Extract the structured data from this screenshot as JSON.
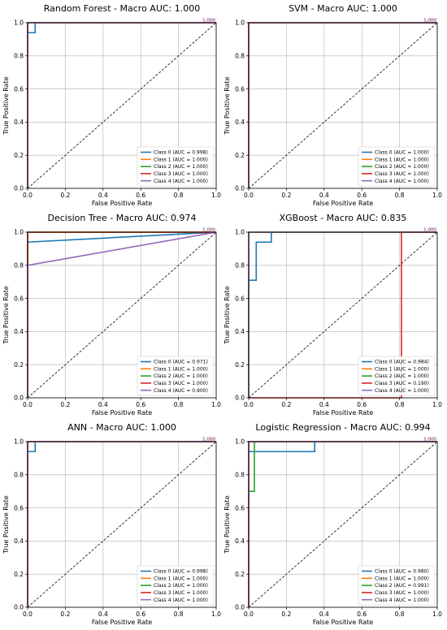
{
  "chart_data": [
    {
      "type": "line",
      "title": "Random Forest - Macro AUC: 1.000",
      "xlabel": "False Positive Rate",
      "ylabel": "True Positive Rate",
      "xlim": [
        0,
        1
      ],
      "ylim": [
        0,
        1
      ],
      "xticks": [
        "0.0",
        "0.2",
        "0.4",
        "0.6",
        "0.8",
        "1.0"
      ],
      "yticks": [
        "0.0",
        "0.2",
        "0.4",
        "0.6",
        "0.8",
        "1.0"
      ],
      "grid": true,
      "legend_position": "lower-right",
      "chance_line": true,
      "series": [
        {
          "name": "Class 0 (AUC = 0.998)",
          "color": "#1f77b4",
          "x": [
            0,
            0,
            0.04,
            0.04,
            1
          ],
          "y": [
            0,
            0.94,
            0.94,
            1,
            1
          ]
        },
        {
          "name": "Class 1 (AUC = 1.000)",
          "color": "#ff7f0e",
          "x": [
            0,
            0,
            1
          ],
          "y": [
            0,
            1,
            1
          ]
        },
        {
          "name": "Class 2 (AUC = 1.000)",
          "color": "#2ca02c",
          "x": [
            0,
            0,
            1
          ],
          "y": [
            0,
            1,
            1
          ]
        },
        {
          "name": "Class 3 (AUC = 1.000)",
          "color": "#d62728",
          "x": [
            0,
            0,
            1
          ],
          "y": [
            0,
            1,
            1
          ]
        },
        {
          "name": "Class 4 (AUC = 1.000)",
          "color": "#9467bd",
          "x": [
            0,
            0,
            1
          ],
          "y": [
            0,
            1,
            1
          ]
        }
      ],
      "end_label": "1.000"
    },
    {
      "type": "line",
      "title": "SVM - Macro AUC: 1.000",
      "xlabel": "False Positive Rate",
      "ylabel": "True Positive Rate",
      "xlim": [
        0,
        1
      ],
      "ylim": [
        0,
        1
      ],
      "xticks": [
        "0.0",
        "0.2",
        "0.4",
        "0.6",
        "0.8",
        "1.0"
      ],
      "yticks": [
        "0.0",
        "0.2",
        "0.4",
        "0.6",
        "0.8",
        "1.0"
      ],
      "grid": true,
      "legend_position": "lower-right",
      "chance_line": true,
      "series": [
        {
          "name": "Class 0 (AUC = 1.000)",
          "color": "#1f77b4",
          "x": [
            0,
            0,
            1
          ],
          "y": [
            0,
            1,
            1
          ]
        },
        {
          "name": "Class 1 (AUC = 1.000)",
          "color": "#ff7f0e",
          "x": [
            0,
            0,
            1
          ],
          "y": [
            0,
            1,
            1
          ]
        },
        {
          "name": "Class 2 (AUC = 1.000)",
          "color": "#2ca02c",
          "x": [
            0,
            0,
            1
          ],
          "y": [
            0,
            1,
            1
          ]
        },
        {
          "name": "Class 3 (AUC = 1.000)",
          "color": "#d62728",
          "x": [
            0,
            0,
            1
          ],
          "y": [
            0,
            1,
            1
          ]
        },
        {
          "name": "Class 4 (AUC = 1.000)",
          "color": "#9467bd",
          "x": [
            0,
            0,
            1
          ],
          "y": [
            0,
            1,
            1
          ]
        }
      ],
      "end_label": "1.000"
    },
    {
      "type": "line",
      "title": "Decision Tree - Macro AUC: 0.974",
      "xlabel": "False Positive Rate",
      "ylabel": "True Positive Rate",
      "xlim": [
        0,
        1
      ],
      "ylim": [
        0,
        1
      ],
      "xticks": [
        "0.0",
        "0.2",
        "0.4",
        "0.6",
        "0.8",
        "1.0"
      ],
      "yticks": [
        "0.0",
        "0.2",
        "0.4",
        "0.6",
        "0.8",
        "1.0"
      ],
      "grid": true,
      "legend_position": "lower-right",
      "chance_line": true,
      "series": [
        {
          "name": "Class 0 (AUC = 0.971)",
          "color": "#1f77b4",
          "x": [
            0,
            0,
            1
          ],
          "y": [
            0,
            0.94,
            1
          ]
        },
        {
          "name": "Class 1 (AUC = 1.000)",
          "color": "#ff7f0e",
          "x": [
            0,
            0,
            1
          ],
          "y": [
            0,
            1,
            1
          ]
        },
        {
          "name": "Class 2 (AUC = 1.000)",
          "color": "#2ca02c",
          "x": [
            0,
            0,
            1
          ],
          "y": [
            0,
            1,
            1
          ]
        },
        {
          "name": "Class 3 (AUC = 1.000)",
          "color": "#d62728",
          "x": [
            0,
            0,
            1
          ],
          "y": [
            0,
            1,
            1
          ]
        },
        {
          "name": "Class 4 (AUC = 0.900)",
          "color": "#9467bd",
          "x": [
            0,
            0,
            1
          ],
          "y": [
            0,
            0.8,
            1
          ]
        }
      ],
      "end_label": "1.000"
    },
    {
      "type": "line",
      "title": "XGBoost - Macro AUC: 0.835",
      "xlabel": "False Positive Rate",
      "ylabel": "True Positive Rate",
      "xlim": [
        0,
        1
      ],
      "ylim": [
        0,
        1
      ],
      "xticks": [
        "0.0",
        "0.2",
        "0.4",
        "0.6",
        "0.8",
        "1.0"
      ],
      "yticks": [
        "0.0",
        "0.2",
        "0.4",
        "0.6",
        "0.8",
        "1.0"
      ],
      "grid": true,
      "legend_position": "lower-right",
      "chance_line": true,
      "series": [
        {
          "name": "Class 0 (AUC = 0.984)",
          "color": "#1f77b4",
          "x": [
            0,
            0,
            0.04,
            0.04,
            0.12,
            0.12,
            1
          ],
          "y": [
            0,
            0.71,
            0.71,
            0.94,
            0.94,
            1,
            1
          ]
        },
        {
          "name": "Class 1 (AUC = 1.000)",
          "color": "#ff7f0e",
          "x": [
            0,
            0,
            1
          ],
          "y": [
            0,
            1,
            1
          ]
        },
        {
          "name": "Class 2 (AUC = 1.000)",
          "color": "#2ca02c",
          "x": [
            0,
            0,
            1
          ],
          "y": [
            0,
            1,
            1
          ]
        },
        {
          "name": "Class 3 (AUC = 0.190)",
          "color": "#d62728",
          "x": [
            0,
            0.81,
            0.81,
            1
          ],
          "y": [
            0,
            0,
            1,
            1
          ]
        },
        {
          "name": "Class 4 (AUC = 1.000)",
          "color": "#9467bd",
          "x": [
            0,
            0,
            1
          ],
          "y": [
            0,
            1,
            1
          ]
        }
      ],
      "end_label": "1.000"
    },
    {
      "type": "line",
      "title": "ANN - Macro AUC: 1.000",
      "xlabel": "False Positive Rate",
      "ylabel": "True Positive Rate",
      "xlim": [
        0,
        1
      ],
      "ylim": [
        0,
        1
      ],
      "xticks": [
        "0.0",
        "0.2",
        "0.4",
        "0.6",
        "0.8",
        "1.0"
      ],
      "yticks": [
        "0.0",
        "0.2",
        "0.4",
        "0.6",
        "0.8",
        "1.0"
      ],
      "grid": true,
      "legend_position": "lower-right",
      "chance_line": true,
      "series": [
        {
          "name": "Class 0 (AUC = 0.998)",
          "color": "#1f77b4",
          "x": [
            0,
            0,
            0.04,
            0.04,
            1
          ],
          "y": [
            0,
            0.94,
            0.94,
            1,
            1
          ]
        },
        {
          "name": "Class 1 (AUC = 1.000)",
          "color": "#ff7f0e",
          "x": [
            0,
            0,
            1
          ],
          "y": [
            0,
            1,
            1
          ]
        },
        {
          "name": "Class 2 (AUC = 1.000)",
          "color": "#2ca02c",
          "x": [
            0,
            0,
            1
          ],
          "y": [
            0,
            1,
            1
          ]
        },
        {
          "name": "Class 3 (AUC = 1.000)",
          "color": "#d62728",
          "x": [
            0,
            0,
            1
          ],
          "y": [
            0,
            1,
            1
          ]
        },
        {
          "name": "Class 4 (AUC = 1.000)",
          "color": "#9467bd",
          "x": [
            0,
            0,
            1
          ],
          "y": [
            0,
            1,
            1
          ]
        }
      ],
      "end_label": "1.000"
    },
    {
      "type": "line",
      "title": "Logistic Regression - Macro AUC: 0.994",
      "xlabel": "False Positive Rate",
      "ylabel": "True Positive Rate",
      "xlim": [
        0,
        1
      ],
      "ylim": [
        0,
        1
      ],
      "xticks": [
        "0.0",
        "0.2",
        "0.4",
        "0.6",
        "0.8",
        "1.0"
      ],
      "yticks": [
        "0.0",
        "0.2",
        "0.4",
        "0.6",
        "0.8",
        "1.0"
      ],
      "grid": true,
      "legend_position": "lower-right",
      "chance_line": true,
      "series": [
        {
          "name": "Class 0 (AUC = 0.980)",
          "color": "#1f77b4",
          "x": [
            0,
            0,
            0.03,
            0.03,
            0.35,
            0.35,
            1
          ],
          "y": [
            0,
            0.94,
            0.94,
            0.94,
            0.94,
            1,
            1
          ]
        },
        {
          "name": "Class 1 (AUC = 1.000)",
          "color": "#ff7f0e",
          "x": [
            0,
            0,
            1
          ],
          "y": [
            0,
            1,
            1
          ]
        },
        {
          "name": "Class 2 (AUC = 0.991)",
          "color": "#2ca02c",
          "x": [
            0,
            0,
            0.03,
            0.03,
            1
          ],
          "y": [
            0,
            0.7,
            0.7,
            1,
            1
          ]
        },
        {
          "name": "Class 3 (AUC = 1.000)",
          "color": "#d62728",
          "x": [
            0,
            0,
            1
          ],
          "y": [
            0,
            1,
            1
          ]
        },
        {
          "name": "Class 4 (AUC = 1.000)",
          "color": "#9467bd",
          "x": [
            0,
            0,
            1
          ],
          "y": [
            0,
            1,
            1
          ]
        }
      ],
      "end_label": "1.000"
    }
  ]
}
